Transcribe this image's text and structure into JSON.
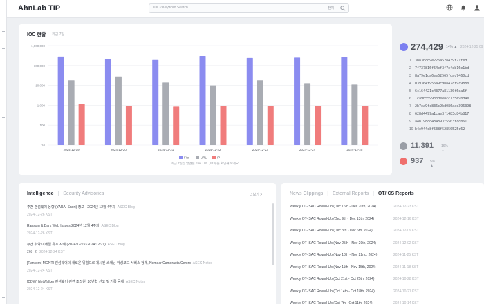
{
  "header": {
    "app_title": "AhnLab TIP",
    "search_placeholder": "IOC / Keyword Search",
    "search_scope": "전체",
    "icons": [
      "search-icon",
      "globe-icon",
      "bell-icon",
      "user-icon"
    ]
  },
  "ioc": {
    "title": "IOC 현황",
    "subtitle": "최근 7일",
    "caption": "최근 7일간 발견된 File, URL, IP 수를 확인해 보세요."
  },
  "chart_data": {
    "type": "bar",
    "y_scale": "log",
    "ylim": [
      10,
      1000000
    ],
    "y_ticks": [
      "1,000,000",
      "100,000",
      "10,000",
      "1,000",
      "100",
      "10"
    ],
    "categories": [
      "2024-12-19",
      "2024-12-20",
      "2024-12-21",
      "2024-12-22",
      "2024-12-23",
      "2024-12-24",
      "2024-12-25"
    ],
    "series": [
      {
        "name": "File",
        "color": "#8b8cf0",
        "values": [
          280000,
          220000,
          190000,
          300000,
          240000,
          250000,
          270000
        ]
      },
      {
        "name": "URL",
        "color": "#a9acb3",
        "values": [
          18000,
          28000,
          14000,
          10000,
          18000,
          13000,
          11000
        ]
      },
      {
        "name": "IP",
        "color": "#f07c7c",
        "values": [
          1200,
          950,
          850,
          900,
          900,
          950,
          900
        ]
      }
    ],
    "legend_position": "bottom",
    "grid": true
  },
  "stats": {
    "total": "274,429",
    "total_pct": "14% ▲",
    "total_date": "2024-12-25 09",
    "top_hashes": [
      {
        "rank": "1",
        "hash": "3b83bcd9e226a528439f71fed"
      },
      {
        "rank": "2",
        "hash": "7f737816f54ef3f7e4eb16e1bd"
      },
      {
        "rank": "3",
        "hash": "8a79e1da6ee62565fdac7460cd"
      },
      {
        "rank": "4",
        "hash": "039364f956a9c9b847cf9c988b"
      },
      {
        "rank": "5",
        "hash": "6c164421c4377a81130f6ea5f"
      },
      {
        "rank": "6",
        "hash": "1ca9b559933dee8cc135e9bd4e"
      },
      {
        "rank": "7",
        "hash": "2b7ea9fc836c9bd086aae396398"
      },
      {
        "rank": "8",
        "hash": "628d4499a1cae3f1483d84b817"
      },
      {
        "rank": "9",
        "hash": "a4b198cd484893f5503fcdb61"
      },
      {
        "rank": "10",
        "hash": "b4e944c8f538f52850525c62"
      }
    ],
    "url_count": "11,391",
    "url_pct": "16% ▲",
    "ip_count": "937",
    "ip_pct": "5% ▲",
    "accents": {
      "file": "#7b7ff0",
      "url": "#9a9ea6",
      "ip": "#ef6f6c"
    }
  },
  "intelligence": {
    "tabs": [
      "Intelligence",
      "Security Advisories"
    ],
    "more": "더보기 >",
    "items": [
      {
        "title": "주간 랜섬웨어 동향 (YARA, Snort) 정보 - 2024년 12월 4주차",
        "source": "ASEC Blog",
        "date": "2024-12-26 KST"
      },
      {
        "title": "Ransom & Dark Web Issues 2024년 12월 4주차",
        "source": "ASEC Blog",
        "date": "2024-12-26 KST"
      },
      {
        "title": "주간 취약 이메일 유포 사례 (2024/12/15~2024/12/21)",
        "source": "ASEC Blog",
        "date": "",
        "badges": [
          "268",
          "2"
        ],
        "badge_date": "2024-12-24 KST"
      },
      {
        "title": "[Ransom] MONTI 랜섬웨어의 새로운 위협으로 게시된 스캐닝 악성코드 서비스 정체, Nemear Camorasta Centro",
        "source": "ASEC Notes",
        "date": "2024-12-24 KST"
      },
      {
        "title": "[DDW] NetWalker 랜섬웨어 관련 조직원, 20년형 선고 및 기록 공개",
        "source": "ASEC Notes",
        "date": "2024-12-24 KST"
      }
    ]
  },
  "news": {
    "tabs": [
      "News Clippings",
      "External Reports",
      "OT/ICS Reports"
    ],
    "items": [
      {
        "title": "Weekly OT-ISAC Round-Up (Dec 16th - Dec 20th, 2024)",
        "date": "2024-12-23 KST"
      },
      {
        "title": "Weekly OT-ISAC Round-Up (Dec 9th - Dec 13th, 2024)",
        "date": "2024-12-16 KST"
      },
      {
        "title": "Weekly OT-ISAC Round-Up (Dec 3rd - Dec 6th, 2024)",
        "date": "2024-12-09 KST"
      },
      {
        "title": "Weekly OT-ISAC Round-Up (Nov 25th - Nov 29th, 2024)",
        "date": "2024-12-02 KST"
      },
      {
        "title": "Weekly OT-ISAC Round-Up (Nov 18th - Nov 22nd, 2024)",
        "date": "2024-11-25 KST"
      },
      {
        "title": "Weekly OT-ISAC Round-Up (Nov 11th - Nov 15th, 2024)",
        "date": "2024-11-18 KST"
      },
      {
        "title": "Weekly OT-ISAC Round-Up (Oct 21st - Oct 25th, 2024)",
        "date": "2024-10-28 KST"
      },
      {
        "title": "Weekly OT-ISAC Round-Up (Oct 14th - Oct 18th, 2024)",
        "date": "2024-10-21 KST"
      },
      {
        "title": "Weekly OT-ISAC Round-Up (Oct 7th - Oct 11th, 2024)",
        "date": "2024-10-14 KST"
      }
    ]
  }
}
